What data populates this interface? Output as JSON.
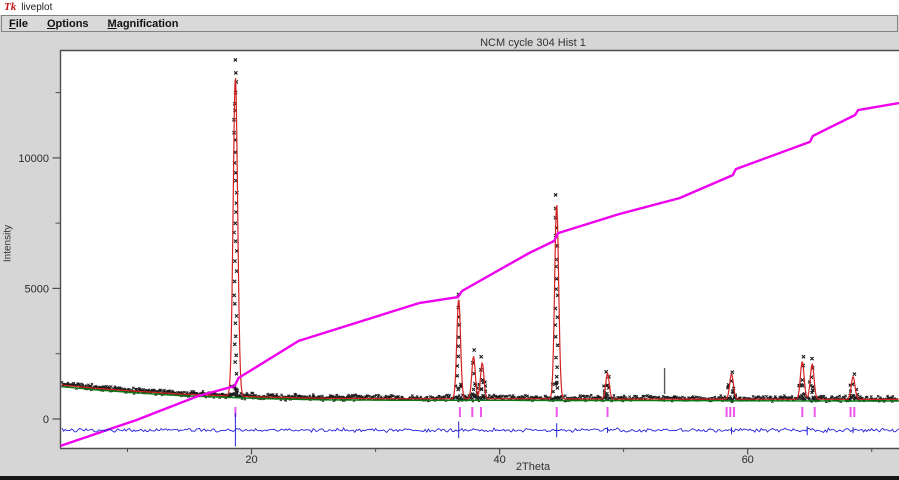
{
  "window": {
    "title": "liveplot",
    "icon_text": "Tk"
  },
  "menu": {
    "items": [
      {
        "label": "File",
        "first": "F",
        "rest": "ile"
      },
      {
        "label": "Options",
        "first": "O",
        "rest": "ptions"
      },
      {
        "label": "Magnification",
        "first": "M",
        "rest": "agnification"
      }
    ]
  },
  "chart_data": {
    "type": "line",
    "title": "NCM cycle 304 Hist 1",
    "xlabel": "2Theta",
    "ylabel": "Intensity",
    "xlim": [
      4.6,
      72.2
    ],
    "ylim": [
      -1110,
      14130
    ],
    "grid": false,
    "x_ticks": {
      "major": [
        20,
        40,
        60
      ],
      "minor": [
        10,
        30,
        50,
        70
      ]
    },
    "y_ticks": {
      "major": [
        0,
        5000,
        10000
      ],
      "minor": [
        2500,
        7500,
        12500
      ]
    },
    "series_colors": {
      "observed": "#1b1b1b",
      "calculated": "#d42121",
      "background": "#0b7a14",
      "cumulative": "#ee00ee",
      "difference": "#2424d8",
      "reflection_ticks": "#ee55ee",
      "excluded_marker": "#5a5a5a"
    },
    "background_points": [
      [
        4.6,
        1282
      ],
      [
        7.6,
        1148
      ],
      [
        10.9,
        1034
      ],
      [
        14.1,
        938
      ],
      [
        17.3,
        880
      ],
      [
        20.6,
        823
      ],
      [
        25.4,
        773
      ],
      [
        31.9,
        754
      ],
      [
        40.0,
        754
      ],
      [
        48.0,
        746
      ],
      [
        56.1,
        739
      ],
      [
        72.2,
        727
      ]
    ],
    "peaks": [
      {
        "two_theta": 18.7,
        "obs": 13700,
        "calc": 13100,
        "sigma": 0.18
      },
      {
        "two_theta": 36.7,
        "obs": 4750,
        "calc": 4600,
        "sigma": 0.15
      },
      {
        "two_theta": 37.9,
        "obs": 2550,
        "calc": 2400,
        "sigma": 0.14
      },
      {
        "two_theta": 38.6,
        "obs": 2300,
        "calc": 2150,
        "sigma": 0.14
      },
      {
        "two_theta": 44.6,
        "obs": 8500,
        "calc": 8250,
        "sigma": 0.16
      },
      {
        "two_theta": 48.7,
        "obs": 1880,
        "calc": 1750,
        "sigma": 0.14
      },
      {
        "two_theta": 58.7,
        "obs": 1850,
        "calc": 1720,
        "sigma": 0.15
      },
      {
        "two_theta": 64.4,
        "obs": 2350,
        "calc": 2200,
        "sigma": 0.15
      },
      {
        "two_theta": 65.2,
        "obs": 2250,
        "calc": 2100,
        "sigma": 0.15
      },
      {
        "two_theta": 68.5,
        "obs": 1750,
        "calc": 1620,
        "sigma": 0.15
      }
    ],
    "reflection_ticks": [
      18.7,
      36.8,
      37.8,
      38.5,
      44.6,
      48.7,
      58.3,
      58.6,
      58.9,
      64.4,
      65.4,
      68.3,
      68.6
    ],
    "cumulative_points": [
      [
        4.6,
        -1030
      ],
      [
        10.7,
        -40
      ],
      [
        15.7,
        880
      ],
      [
        18.63,
        1260
      ],
      [
        18.95,
        1570
      ],
      [
        23.8,
        2990
      ],
      [
        33.5,
        4440
      ],
      [
        36.65,
        4670
      ],
      [
        36.97,
        4900
      ],
      [
        42.4,
        6360
      ],
      [
        44.4,
        6820
      ],
      [
        44.72,
        7120
      ],
      [
        49.66,
        7850
      ],
      [
        54.5,
        8460
      ],
      [
        58.8,
        9340
      ],
      [
        59.04,
        9570
      ],
      [
        65.02,
        10610
      ],
      [
        65.26,
        10840
      ],
      [
        68.66,
        11640
      ],
      [
        68.9,
        11830
      ],
      [
        72.2,
        12100
      ]
    ],
    "difference": {
      "baseline": -430,
      "noise": 65,
      "spikes": [
        {
          "two_theta": 18.7,
          "up": 660,
          "down": 620
        },
        {
          "two_theta": 36.7,
          "up": 340,
          "down": 300
        },
        {
          "two_theta": 44.6,
          "up": 270,
          "down": 270
        },
        {
          "two_theta": 48.7,
          "up": 115,
          "down": 100
        },
        {
          "two_theta": 58.7,
          "up": 115,
          "down": 150
        },
        {
          "two_theta": 64.8,
          "up": 150,
          "down": 190
        },
        {
          "two_theta": 68.5,
          "up": 115,
          "down": 115
        }
      ]
    },
    "excluded_marker": {
      "two_theta": 53.3,
      "from": 1950,
      "to": 960
    }
  }
}
